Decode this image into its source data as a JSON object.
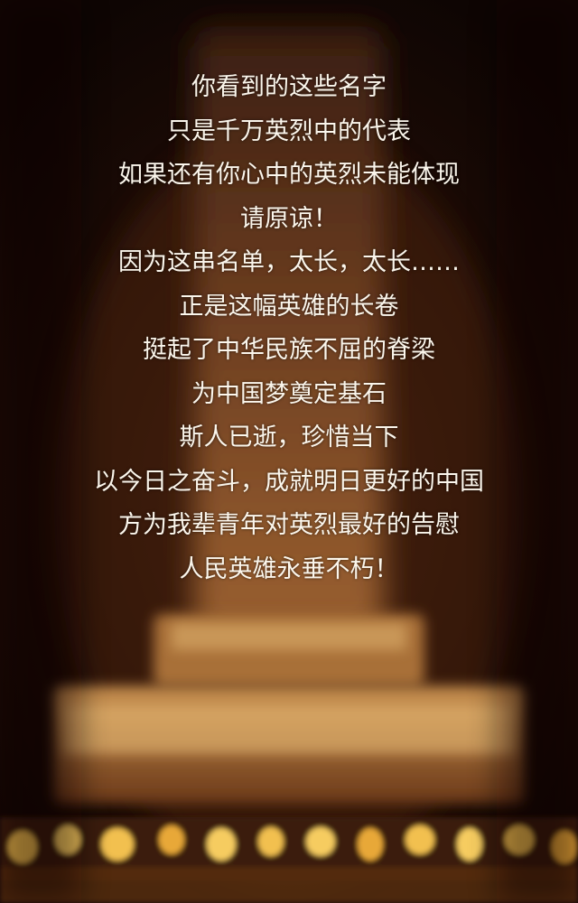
{
  "poem": {
    "lines": [
      "你看到的这些名字",
      "只是千万英烈中的代表",
      "如果还有你心中的英烈未能体现",
      "请原谅！",
      "因为这串名单，太长，太长……",
      "正是这幅英雄的长卷",
      "挺起了中华民族不屈的脊梁",
      "为中国梦奠定基石",
      "斯人已逝，珍惜当下",
      "以今日之奋斗，成就明日更好的中国",
      "方为我辈青年对英烈最好的告慰",
      "人民英雄永垂不朽！"
    ]
  },
  "colors": {
    "background": "#1e0c06",
    "text": "#fbf6ec",
    "monument_glow": "#e8a040"
  }
}
